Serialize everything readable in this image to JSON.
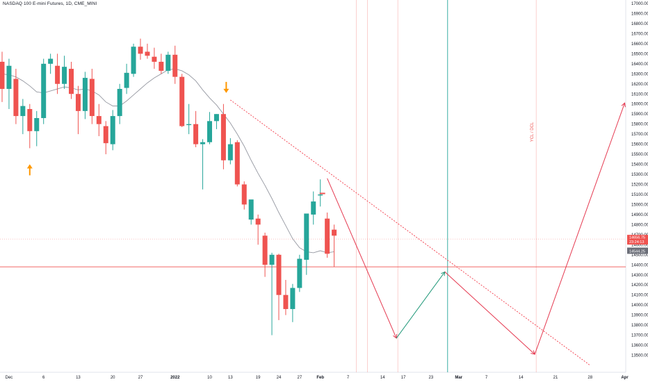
{
  "header": {
    "title": "NASDAQ 100 E-mini Futures, 1D, CME_MINI"
  },
  "colors": {
    "up": "#26a69a",
    "down": "#ef5350",
    "ma": "#9598a1",
    "trend": "#f23645",
    "projection_down": "#e53950",
    "projection_up": "#22997a",
    "arrow": "#ff9800",
    "hline": "#ef5350",
    "axis_text": "#131722",
    "last_price_bg": "#ef5350",
    "ma_price_bg": "#6b6e78"
  },
  "chart_data": {
    "type": "candlestick",
    "title": "NASDAQ 100 E-mini Futures, 1D, CME_MINI",
    "y_axis": {
      "position": "right",
      "ylim": [
        13400,
        17000
      ],
      "ticks": [
        13500,
        13600,
        13700,
        13800,
        13900,
        14000,
        14100,
        14200,
        14300,
        14400,
        14500,
        14600,
        14700,
        14800,
        14900,
        15000,
        15100,
        15200,
        15300,
        15400,
        15500,
        15600,
        15700,
        15800,
        15900,
        16000,
        16100,
        16200,
        16300,
        16400,
        16500,
        16600,
        16700,
        16800,
        16900,
        17000
      ]
    },
    "x_axis": {
      "tick_labels": [
        {
          "label": "Dec",
          "idx": 1
        },
        {
          "label": "6",
          "idx": 6
        },
        {
          "label": "13",
          "idx": 11
        },
        {
          "label": "20",
          "idx": 16
        },
        {
          "label": "27",
          "idx": 20
        },
        {
          "label": "2022",
          "idx": 25,
          "bold": true
        },
        {
          "label": "10",
          "idx": 30
        },
        {
          "label": "13",
          "idx": 33
        },
        {
          "label": "19",
          "idx": 37
        },
        {
          "label": "24",
          "idx": 40
        },
        {
          "label": "27",
          "idx": 43
        },
        {
          "label": "Feb",
          "idx": 46,
          "bold": true
        },
        {
          "label": "7",
          "idx": 50
        },
        {
          "label": "14",
          "idx": 55
        },
        {
          "label": "17",
          "idx": 58
        },
        {
          "label": "23",
          "idx": 62
        },
        {
          "label": "Mar",
          "idx": 66,
          "bold": true
        },
        {
          "label": "7",
          "idx": 70
        },
        {
          "label": "14",
          "idx": 75
        },
        {
          "label": "21",
          "idx": 80
        },
        {
          "label": "28",
          "idx": 85
        },
        {
          "label": "Apr",
          "idx": 90,
          "bold": true
        }
      ]
    },
    "candles": [
      {
        "o": 16420,
        "h": 16520,
        "l": 16020,
        "c": 16150
      },
      {
        "o": 16150,
        "h": 16450,
        "l": 15950,
        "c": 16380
      },
      {
        "o": 16250,
        "h": 16350,
        "l": 15800,
        "c": 15880
      },
      {
        "o": 15880,
        "h": 16050,
        "l": 15700,
        "c": 15980
      },
      {
        "o": 15950,
        "h": 16000,
        "l": 15560,
        "c": 15730
      },
      {
        "o": 15730,
        "h": 15930,
        "l": 15580,
        "c": 15860
      },
      {
        "o": 15860,
        "h": 16450,
        "l": 15800,
        "c": 16400
      },
      {
        "o": 16400,
        "h": 16500,
        "l": 16300,
        "c": 16450
      },
      {
        "o": 16380,
        "h": 16500,
        "l": 16100,
        "c": 16200
      },
      {
        "o": 16200,
        "h": 16480,
        "l": 16150,
        "c": 16370
      },
      {
        "o": 16350,
        "h": 16420,
        "l": 16050,
        "c": 16100
      },
      {
        "o": 16100,
        "h": 16180,
        "l": 15700,
        "c": 15930
      },
      {
        "o": 15930,
        "h": 16320,
        "l": 15850,
        "c": 16260
      },
      {
        "o": 16250,
        "h": 16350,
        "l": 15800,
        "c": 15880
      },
      {
        "o": 15880,
        "h": 16000,
        "l": 15680,
        "c": 15800
      },
      {
        "o": 15780,
        "h": 15830,
        "l": 15500,
        "c": 15610
      },
      {
        "o": 15600,
        "h": 15940,
        "l": 15540,
        "c": 15880
      },
      {
        "o": 15880,
        "h": 16200,
        "l": 15800,
        "c": 16150
      },
      {
        "o": 16160,
        "h": 16400,
        "l": 16100,
        "c": 16310
      },
      {
        "o": 16300,
        "h": 16600,
        "l": 16270,
        "c": 16570
      },
      {
        "o": 16570,
        "h": 16650,
        "l": 16440,
        "c": 16500
      },
      {
        "o": 16520,
        "h": 16600,
        "l": 16450,
        "c": 16480
      },
      {
        "o": 16470,
        "h": 16560,
        "l": 16350,
        "c": 16420
      },
      {
        "o": 16420,
        "h": 16500,
        "l": 16300,
        "c": 16330
      },
      {
        "o": 16330,
        "h": 16520,
        "l": 16300,
        "c": 16490
      },
      {
        "o": 16490,
        "h": 16580,
        "l": 16200,
        "c": 16270
      },
      {
        "o": 16270,
        "h": 16300,
        "l": 15770,
        "c": 15780
      },
      {
        "o": 15790,
        "h": 16000,
        "l": 15700,
        "c": 15800
      },
      {
        "o": 15800,
        "h": 15930,
        "l": 15570,
        "c": 15600
      },
      {
        "o": 15600,
        "h": 15650,
        "l": 15150,
        "c": 15620
      },
      {
        "o": 15620,
        "h": 15920,
        "l": 15600,
        "c": 15830
      },
      {
        "o": 15830,
        "h": 15900,
        "l": 15750,
        "c": 15900
      },
      {
        "o": 15900,
        "h": 16000,
        "l": 15350,
        "c": 15440
      },
      {
        "o": 15440,
        "h": 15660,
        "l": 15400,
        "c": 15600
      },
      {
        "o": 15620,
        "h": 15640,
        "l": 15180,
        "c": 15200
      },
      {
        "o": 15200,
        "h": 15230,
        "l": 14950,
        "c": 15000
      },
      {
        "o": 14850,
        "h": 15040,
        "l": 14800,
        "c": 15050
      },
      {
        "o": 14860,
        "h": 14900,
        "l": 14600,
        "c": 14800
      },
      {
        "o": 14690,
        "h": 14720,
        "l": 14280,
        "c": 14400
      },
      {
        "o": 14400,
        "h": 14520,
        "l": 13700,
        "c": 14500
      },
      {
        "o": 14500,
        "h": 14510,
        "l": 13850,
        "c": 14100
      },
      {
        "o": 14100,
        "h": 14250,
        "l": 13900,
        "c": 13960
      },
      {
        "o": 13960,
        "h": 14210,
        "l": 13830,
        "c": 14170
      },
      {
        "o": 14170,
        "h": 14500,
        "l": 14130,
        "c": 14460
      },
      {
        "o": 14450,
        "h": 14900,
        "l": 14300,
        "c": 14910
      },
      {
        "o": 14900,
        "h": 15130,
        "l": 14800,
        "c": 15030
      },
      {
        "o": 15090,
        "h": 15250,
        "l": 14980,
        "c": 15100
      },
      {
        "o": 14860,
        "h": 14920,
        "l": 14470,
        "c": 14510
      },
      {
        "o": 14750,
        "h": 14800,
        "l": 14380,
        "c": 14690
      }
    ],
    "moving_average": [
      16300,
      16290,
      16270,
      16230,
      16180,
      16120,
      16110,
      16130,
      16150,
      16170,
      16160,
      16140,
      16150,
      16130,
      16090,
      16020,
      15980,
      15980,
      16030,
      16090,
      16150,
      16210,
      16260,
      16300,
      16340,
      16350,
      16330,
      16290,
      16230,
      16140,
      16060,
      15990,
      15900,
      15810,
      15700,
      15580,
      15440,
      15310,
      15190,
      15060,
      14920,
      14790,
      14660,
      14570,
      14530,
      14520,
      14540,
      14520,
      14530
    ],
    "current_price": "14656.75",
    "ma_value": "14544.25",
    "countdown": "23:24:13",
    "horizontal_level": 14380,
    "trendline": {
      "from": {
        "idx": 33,
        "price": 16040
      },
      "to": {
        "idx": 85,
        "price": 13400
      }
    },
    "projection": [
      {
        "idx": 47,
        "price": 15260
      },
      {
        "idx": 57,
        "price": 13670
      },
      {
        "idx": 64,
        "price": 14330
      },
      {
        "idx": 77,
        "price": 13510
      },
      {
        "idx": 90,
        "price": 16010
      }
    ],
    "vertical_lines": [
      {
        "idx": 51.2,
        "color": "#ef5350"
      },
      {
        "idx": 52.8,
        "color": "#ef5350"
      },
      {
        "idx": 57.2,
        "color": "#ef5350"
      },
      {
        "idx": 64.4,
        "color": "#26a69a"
      },
      {
        "idx": 77.2,
        "color": "#ef5350"
      }
    ],
    "vertical_label": "YCL / DCL",
    "markers": [
      {
        "idx": 4,
        "price": 15380,
        "direction": "up"
      },
      {
        "idx": 32.4,
        "price": 16130,
        "direction": "down"
      }
    ],
    "grid": false
  }
}
